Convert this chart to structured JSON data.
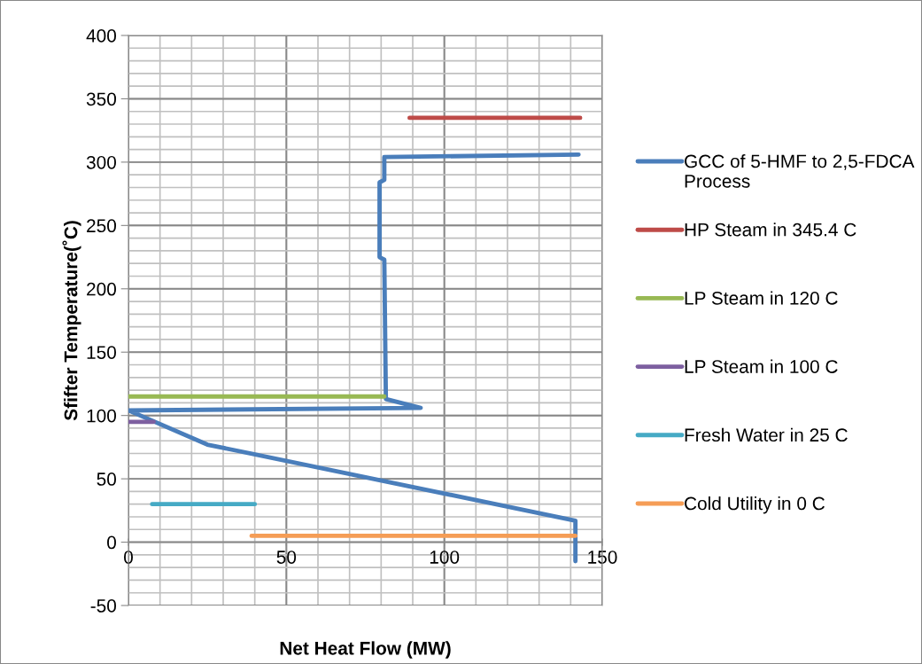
{
  "chart_data": {
    "type": "line",
    "xlabel": "Net Heat Flow (MW)",
    "ylabel": "Sfifter Temperature(˚C)",
    "xlim": [
      0,
      150
    ],
    "xticks": [
      0,
      50,
      100,
      150
    ],
    "ylim": [
      -50,
      400
    ],
    "yticks": [
      -50,
      0,
      50,
      100,
      150,
      200,
      250,
      300,
      350,
      400
    ],
    "grid": true,
    "legend": "right",
    "marker": "none",
    "line_style": "solid",
    "series": [
      {
        "name": "GCC of 5-HMF to 2,5-FDCA Process",
        "color": "#4a7ebb",
        "x": [
          142.5,
          81,
          81,
          79.5,
          79.5,
          81,
          81.5,
          92.5,
          0,
          25,
          141.5,
          141.5
        ],
        "values": [
          306,
          304,
          286,
          284,
          225,
          223,
          113,
          106,
          104,
          77,
          17,
          -15
        ]
      },
      {
        "name": "HP Steam in 345.4 C",
        "color": "#be4b48",
        "x": [
          89,
          143
        ],
        "values": [
          335,
          335
        ]
      },
      {
        "name": "LP Steam in 120 C",
        "color": "#98b954",
        "x": [
          0,
          81
        ],
        "values": [
          115,
          115
        ]
      },
      {
        "name": "LP Steam in 100 C",
        "color": "#7d5fa0",
        "x": [
          0,
          8
        ],
        "values": [
          95,
          95
        ]
      },
      {
        "name": "Fresh Water in 25 C",
        "color": "#46aac5",
        "x": [
          7.5,
          40
        ],
        "values": [
          30,
          30
        ]
      },
      {
        "name": "Cold Utility in 0 C",
        "color": "#f59d56",
        "x": [
          39,
          141.5
        ],
        "values": [
          5,
          5
        ]
      }
    ]
  }
}
